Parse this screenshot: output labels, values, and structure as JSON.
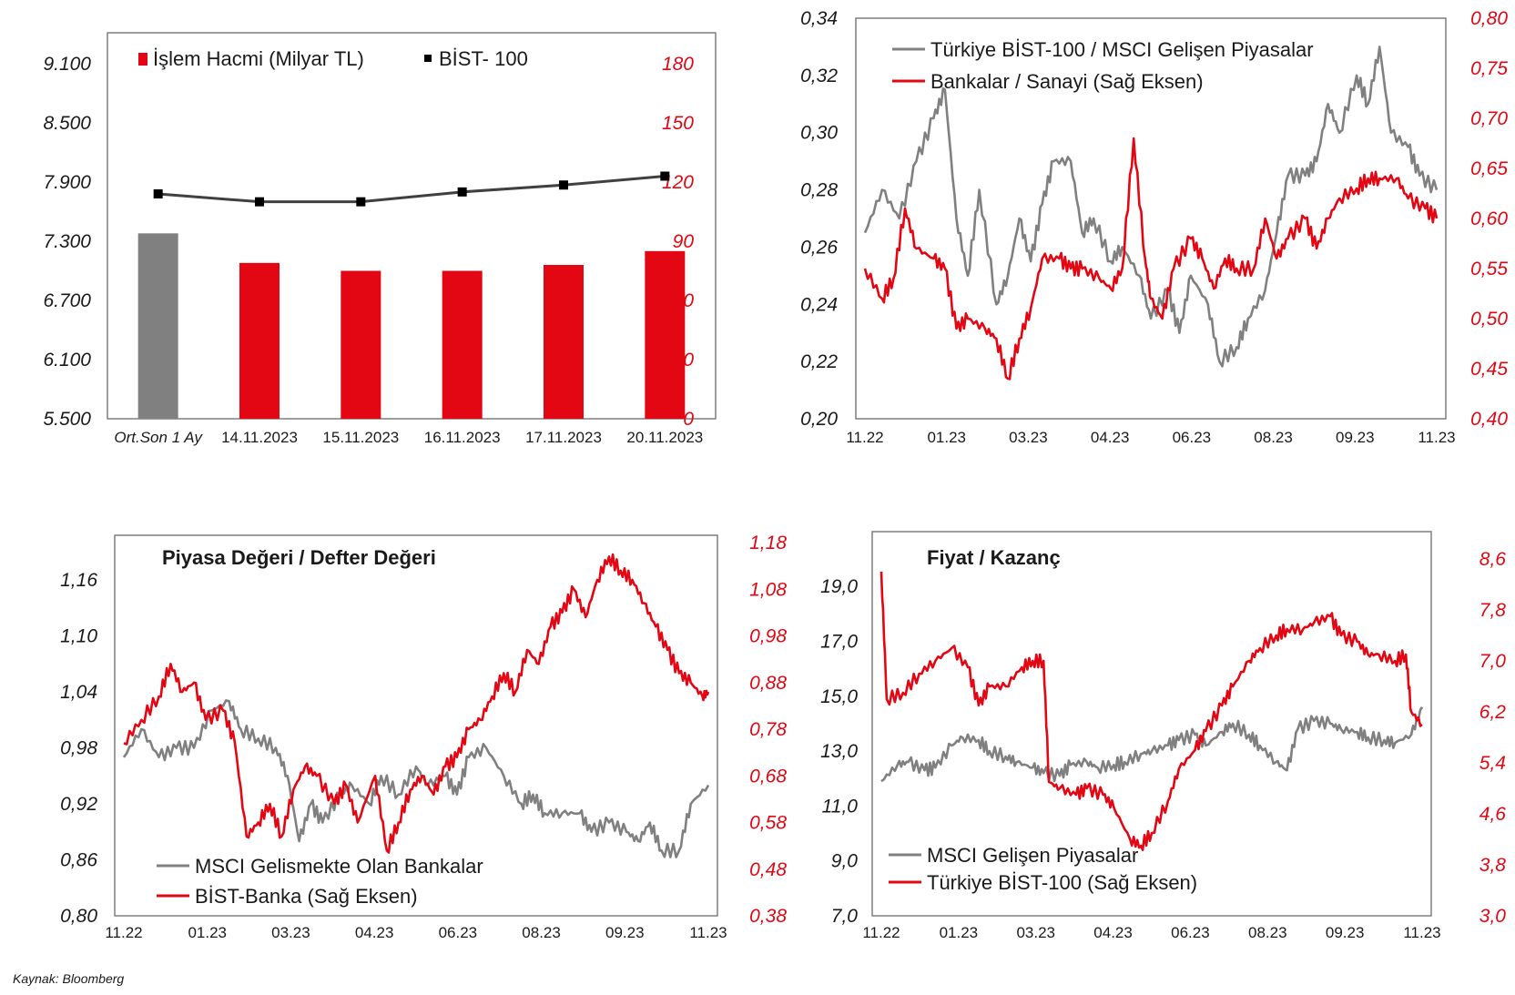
{
  "source": "Kaynak: Bloomberg",
  "colors": {
    "red": "#e30613",
    "gray": "#808080",
    "dark": "#404040"
  },
  "chart_data": [
    {
      "type": "bar",
      "categories": [
        "Ort.Son 1 Ay",
        "14.11.2023",
        "15.11.2023",
        "16.11.2023",
        "17.11.2023",
        "20.11.2023"
      ],
      "left_axis": {
        "ticks": [
          "5.500",
          "6.100",
          "6.700",
          "7.300",
          "7.900",
          "8.500",
          "9.100"
        ],
        "ylim": [
          5500,
          9100
        ]
      },
      "right_axis": {
        "ticks": [
          "0",
          "30",
          "60",
          "90",
          "120",
          "150",
          "180"
        ],
        "ylim": [
          0,
          180
        ]
      },
      "series": [
        {
          "name": "İşlem Hacmi (Milyar TL)",
          "axis": "right",
          "values": [
            94,
            79,
            75,
            75,
            78,
            85
          ],
          "colors": [
            "#808080",
            "#e30613",
            "#e30613",
            "#e30613",
            "#e30613",
            "#e30613"
          ]
        },
        {
          "name": "BİST- 100",
          "axis": "left",
          "type": "line",
          "values": [
            7780,
            7700,
            7700,
            7800,
            7870,
            7960
          ]
        }
      ]
    },
    {
      "type": "line",
      "x_ticks": [
        "11.22",
        "01.23",
        "03.23",
        "04.23",
        "06.23",
        "08.23",
        "09.23",
        "11.23"
      ],
      "left_axis": {
        "ticks": [
          "0,20",
          "0,22",
          "0,24",
          "0,26",
          "0,28",
          "0,30",
          "0,32",
          "0,34"
        ],
        "ylim": [
          0.2,
          0.34
        ]
      },
      "right_axis": {
        "ticks": [
          "0,40",
          "0,45",
          "0,50",
          "0,55",
          "0,60",
          "0,65",
          "0,70",
          "0,75",
          "0,80"
        ],
        "ylim": [
          0.4,
          0.8
        ]
      },
      "series": [
        {
          "name": "Türkiye BİST-100 / MSCI Gelişen Piyasalar",
          "axis": "left",
          "color": "#808080",
          "x": [
            0,
            0.03,
            0.06,
            0.09,
            0.12,
            0.14,
            0.16,
            0.18,
            0.2,
            0.23,
            0.25,
            0.27,
            0.29,
            0.31,
            0.33,
            0.36,
            0.38,
            0.4,
            0.43,
            0.45,
            0.48,
            0.5,
            0.53,
            0.55,
            0.57,
            0.6,
            0.62,
            0.65,
            0.67,
            0.7,
            0.72,
            0.74,
            0.77,
            0.79,
            0.81,
            0.83,
            0.86,
            0.88,
            0.9,
            0.92,
            0.95,
            0.97,
            1
          ],
          "y": [
            0.265,
            0.28,
            0.27,
            0.29,
            0.305,
            0.315,
            0.27,
            0.25,
            0.28,
            0.24,
            0.25,
            0.27,
            0.255,
            0.275,
            0.29,
            0.29,
            0.265,
            0.27,
            0.255,
            0.26,
            0.25,
            0.235,
            0.245,
            0.23,
            0.25,
            0.24,
            0.22,
            0.225,
            0.235,
            0.245,
            0.265,
            0.285,
            0.285,
            0.29,
            0.31,
            0.3,
            0.32,
            0.31,
            0.33,
            0.3,
            0.295,
            0.285,
            0.28
          ]
        },
        {
          "name": "Bankalar / Sanayi (Sağ Eksen)",
          "axis": "right",
          "color": "#e30613",
          "x": [
            0,
            0.03,
            0.05,
            0.07,
            0.09,
            0.12,
            0.14,
            0.16,
            0.18,
            0.21,
            0.23,
            0.25,
            0.27,
            0.29,
            0.31,
            0.34,
            0.36,
            0.38,
            0.41,
            0.43,
            0.45,
            0.47,
            0.49,
            0.5,
            0.52,
            0.54,
            0.57,
            0.59,
            0.61,
            0.63,
            0.65,
            0.68,
            0.7,
            0.72,
            0.74,
            0.77,
            0.79,
            0.81,
            0.83,
            0.86,
            0.88,
            0.9,
            0.93,
            0.95,
            0.98,
            1
          ],
          "y": [
            0.55,
            0.52,
            0.54,
            0.61,
            0.57,
            0.56,
            0.55,
            0.49,
            0.5,
            0.49,
            0.48,
            0.44,
            0.48,
            0.51,
            0.56,
            0.56,
            0.55,
            0.55,
            0.54,
            0.53,
            0.55,
            0.68,
            0.56,
            0.52,
            0.5,
            0.55,
            0.58,
            0.56,
            0.53,
            0.56,
            0.55,
            0.55,
            0.6,
            0.56,
            0.58,
            0.6,
            0.57,
            0.6,
            0.62,
            0.63,
            0.64,
            0.64,
            0.64,
            0.62,
            0.61,
            0.6
          ]
        }
      ]
    },
    {
      "type": "line",
      "title": "Piyasa Değeri / Defter Değeri",
      "x_ticks": [
        "11.22",
        "01.23",
        "03.23",
        "04.23",
        "06.23",
        "08.23",
        "09.23",
        "11.23"
      ],
      "left_axis": {
        "ticks": [
          "0,80",
          "0,86",
          "0,92",
          "0,98",
          "1,04",
          "1,10",
          "1,16"
        ],
        "ylim": [
          0.8,
          1.2
        ]
      },
      "right_axis": {
        "ticks": [
          "0,38",
          "0,48",
          "0,58",
          "0,68",
          "0,78",
          "0,88",
          "0,98",
          "1,08",
          "1,18"
        ],
        "ylim": [
          0.38,
          1.18
        ]
      },
      "series": [
        {
          "name": "MSCI Gelismekte Olan Bankalar",
          "axis": "left",
          "color": "#808080",
          "x": [
            0,
            0.03,
            0.06,
            0.09,
            0.12,
            0.15,
            0.18,
            0.2,
            0.23,
            0.26,
            0.28,
            0.3,
            0.32,
            0.34,
            0.37,
            0.39,
            0.42,
            0.44,
            0.47,
            0.5,
            0.52,
            0.55,
            0.57,
            0.59,
            0.62,
            0.65,
            0.68,
            0.7,
            0.72,
            0.75,
            0.78,
            0.8,
            0.83,
            0.86,
            0.88,
            0.9,
            0.92,
            0.95,
            0.97,
            1
          ],
          "y": [
            0.97,
            1.0,
            0.97,
            0.98,
            0.98,
            1.02,
            1.03,
            1.0,
            0.99,
            0.98,
            0.95,
            0.88,
            0.92,
            0.9,
            0.93,
            0.94,
            0.92,
            0.95,
            0.93,
            0.96,
            0.94,
            0.95,
            0.93,
            0.97,
            0.98,
            0.95,
            0.92,
            0.93,
            0.91,
            0.91,
            0.91,
            0.89,
            0.9,
            0.89,
            0.88,
            0.9,
            0.87,
            0.87,
            0.92,
            0.94
          ]
        },
        {
          "name": "BİST-Banka (Sağ Eksen)",
          "axis": "right",
          "color": "#e30613",
          "x": [
            0,
            0.03,
            0.06,
            0.08,
            0.1,
            0.12,
            0.14,
            0.17,
            0.19,
            0.21,
            0.23,
            0.25,
            0.27,
            0.29,
            0.31,
            0.33,
            0.36,
            0.38,
            0.4,
            0.43,
            0.45,
            0.47,
            0.49,
            0.51,
            0.53,
            0.55,
            0.57,
            0.59,
            0.61,
            0.63,
            0.65,
            0.67,
            0.69,
            0.71,
            0.73,
            0.75,
            0.77,
            0.79,
            0.81,
            0.83,
            0.85,
            0.87,
            0.89,
            0.91,
            0.93,
            0.95,
            0.97,
            0.99,
            1
          ],
          "y": [
            0.75,
            0.8,
            0.85,
            0.92,
            0.86,
            0.88,
            0.8,
            0.82,
            0.75,
            0.55,
            0.58,
            0.62,
            0.55,
            0.65,
            0.7,
            0.68,
            0.62,
            0.66,
            0.58,
            0.68,
            0.52,
            0.58,
            0.65,
            0.68,
            0.64,
            0.7,
            0.72,
            0.78,
            0.8,
            0.85,
            0.9,
            0.86,
            0.95,
            0.92,
            1.0,
            1.03,
            1.08,
            1.02,
            1.1,
            1.15,
            1.12,
            1.1,
            1.05,
            1.0,
            0.95,
            0.9,
            0.88,
            0.85,
            0.86
          ]
        }
      ]
    },
    {
      "type": "line",
      "title": "Fiyat / Kazanç",
      "x_ticks": [
        "11.22",
        "01.23",
        "03.23",
        "04.23",
        "06.23",
        "08.23",
        "09.23",
        "11.23"
      ],
      "left_axis": {
        "ticks": [
          "7,0",
          "9,0",
          "11,0",
          "13,0",
          "15,0",
          "17,0",
          "19,0"
        ],
        "ylim": [
          7.0,
          20.0
        ]
      },
      "right_axis": {
        "ticks": [
          "3,0",
          "3,8",
          "4,6",
          "5,4",
          "6,2",
          "7,0",
          "7,8",
          "8,6"
        ],
        "ylim": [
          3.0,
          8.6
        ]
      },
      "series": [
        {
          "name": "MSCI Gelişen Piyasalar",
          "axis": "left",
          "color": "#808080",
          "x": [
            0,
            0.03,
            0.05,
            0.08,
            0.1,
            0.13,
            0.15,
            0.18,
            0.2,
            0.23,
            0.25,
            0.28,
            0.3,
            0.33,
            0.35,
            0.38,
            0.4,
            0.43,
            0.45,
            0.48,
            0.5,
            0.53,
            0.55,
            0.58,
            0.6,
            0.63,
            0.65,
            0.68,
            0.7,
            0.73,
            0.75,
            0.77,
            0.8,
            0.83,
            0.85,
            0.88,
            0.9,
            0.93,
            0.95,
            0.98,
            1
          ],
          "y": [
            11.9,
            12.5,
            12.6,
            12.3,
            12.4,
            13.2,
            13.5,
            13.4,
            13.0,
            12.8,
            12.6,
            12.4,
            12.2,
            12.1,
            12.5,
            12.6,
            12.4,
            12.5,
            12.6,
            12.9,
            13.0,
            13.2,
            13.4,
            13.6,
            13.2,
            13.7,
            14.0,
            13.6,
            13.2,
            12.6,
            12.3,
            13.8,
            14.1,
            14.0,
            13.8,
            13.7,
            13.5,
            13.4,
            13.3,
            13.6,
            14.6
          ]
        },
        {
          "name": "Türkiye BİST-100 (Sağ Eksen)",
          "axis": "right",
          "color": "#e30613",
          "x": [
            0,
            0.01,
            0.04,
            0.07,
            0.1,
            0.13,
            0.16,
            0.18,
            0.2,
            0.23,
            0.26,
            0.28,
            0.3,
            0.31,
            0.33,
            0.36,
            0.38,
            0.41,
            0.43,
            0.46,
            0.48,
            0.5,
            0.53,
            0.55,
            0.58,
            0.6,
            0.63,
            0.65,
            0.68,
            0.7,
            0.73,
            0.75,
            0.78,
            0.8,
            0.83,
            0.85,
            0.88,
            0.9,
            0.92,
            0.95,
            0.97,
            0.98,
            1
          ],
          "y": [
            8.4,
            6.4,
            6.5,
            6.8,
            7.0,
            7.2,
            6.9,
            6.3,
            6.6,
            6.6,
            6.9,
            7.0,
            7.0,
            5.1,
            5.0,
            4.9,
            5.0,
            4.9,
            4.7,
            4.2,
            4.1,
            4.3,
            4.8,
            5.3,
            5.6,
            5.9,
            6.3,
            6.6,
            7.0,
            7.2,
            7.4,
            7.5,
            7.5,
            7.6,
            7.7,
            7.4,
            7.3,
            7.1,
            7.1,
            7.0,
            7.1,
            6.2,
            6.0
          ]
        }
      ]
    }
  ]
}
